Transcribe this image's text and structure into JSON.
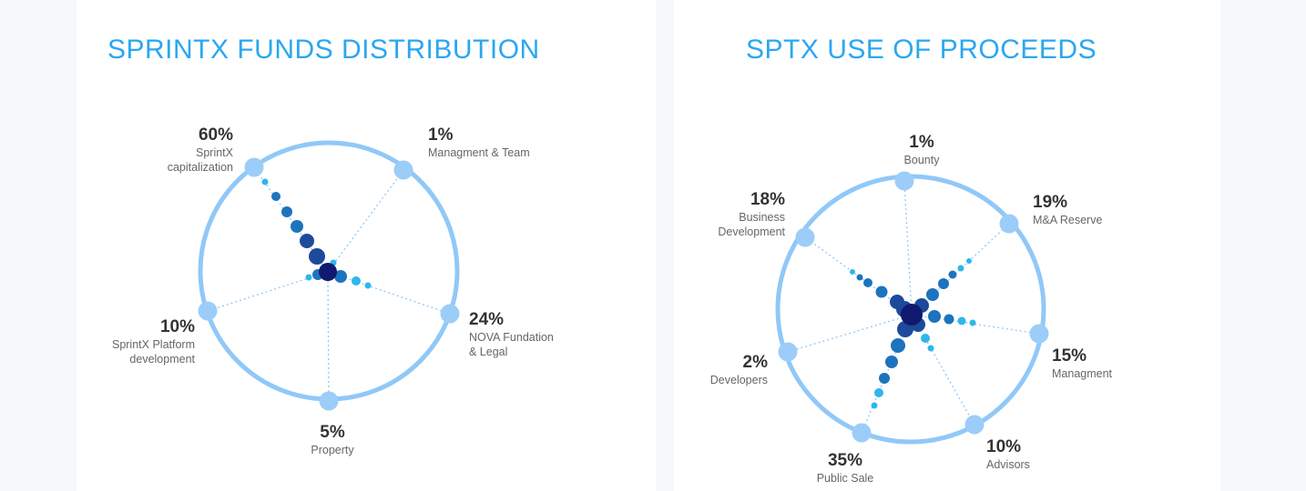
{
  "colors": {
    "title": "#2aa7f0",
    "ring": "#90c8f8",
    "node": "#9ccdf8",
    "dot_light": "#2fb6ec",
    "dot_mid": "#1e73be",
    "dot_dark": "#1d4a9a",
    "dot_center": "#101a6e",
    "percent_text": "#333333",
    "label_text": "#666666"
  },
  "chart_data": [
    {
      "type": "pie",
      "style": "radial-dot",
      "title": "SPRINTX FUNDS DISTRIBUTION",
      "slices": [
        {
          "percent": "60%",
          "label": [
            "SprintX",
            "capitalization"
          ],
          "value": 60
        },
        {
          "percent": "1%",
          "label": [
            "Managment & Team"
          ],
          "value": 1
        },
        {
          "percent": "24%",
          "label": [
            "NOVA Fundation",
            "& Legal"
          ],
          "value": 24
        },
        {
          "percent": "5%",
          "label": [
            "Property"
          ],
          "value": 5
        },
        {
          "percent": "10%",
          "label": [
            "SprintX Platform",
            "development"
          ],
          "value": 10
        }
      ]
    },
    {
      "type": "pie",
      "style": "radial-dot",
      "title": "SPTX USE OF PROCEEDS",
      "slices": [
        {
          "percent": "1%",
          "label": [
            "Bounty"
          ],
          "value": 1
        },
        {
          "percent": "19%",
          "label": [
            "M&A Reserve"
          ],
          "value": 19
        },
        {
          "percent": "15%",
          "label": [
            "Managment"
          ],
          "value": 15
        },
        {
          "percent": "10%",
          "label": [
            "Advisors"
          ],
          "value": 10
        },
        {
          "percent": "35%",
          "label": [
            "Public Sale"
          ],
          "value": 35
        },
        {
          "percent": "2%",
          "label": [
            "Developers"
          ],
          "value": 2
        },
        {
          "percent": "18%",
          "label": [
            "Business",
            "Development"
          ],
          "value": 18
        }
      ]
    }
  ]
}
